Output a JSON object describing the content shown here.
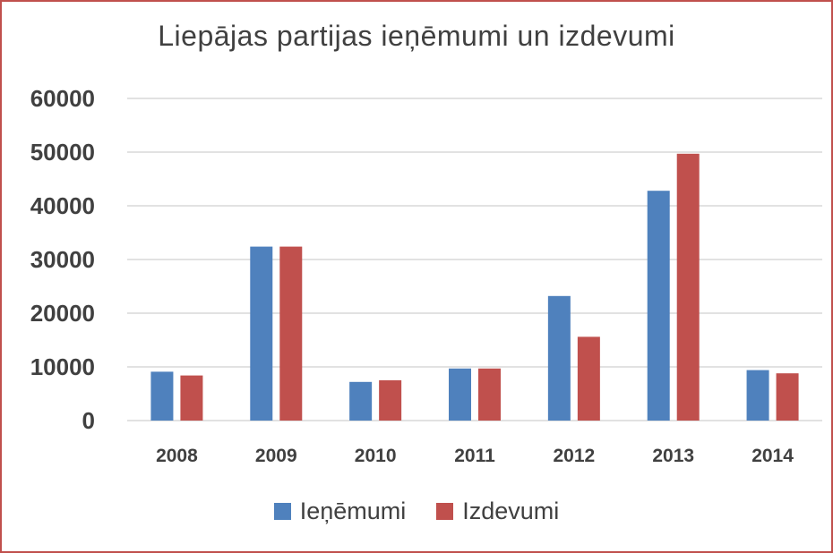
{
  "chart_data": {
    "type": "bar",
    "title": "Liepājas partijas ieņēmumi un izdevumi",
    "xlabel": "",
    "ylabel": "",
    "categories": [
      "2008",
      "2009",
      "2010",
      "2011",
      "2012",
      "2013",
      "2014"
    ],
    "ylim": [
      0,
      60000
    ],
    "yticks": [
      "0",
      "10000",
      "20000",
      "30000",
      "40000",
      "50000",
      "60000"
    ],
    "grid": true,
    "legend_position": "bottom",
    "series": [
      {
        "name": "Ieņēmumi",
        "color": "#4f81bd",
        "values": [
          9100,
          32400,
          7200,
          9700,
          23200,
          42800,
          9400
        ]
      },
      {
        "name": "Izdevumi",
        "color": "#c0504d",
        "values": [
          8400,
          32400,
          7500,
          9700,
          15600,
          49700,
          8800
        ]
      }
    ]
  }
}
